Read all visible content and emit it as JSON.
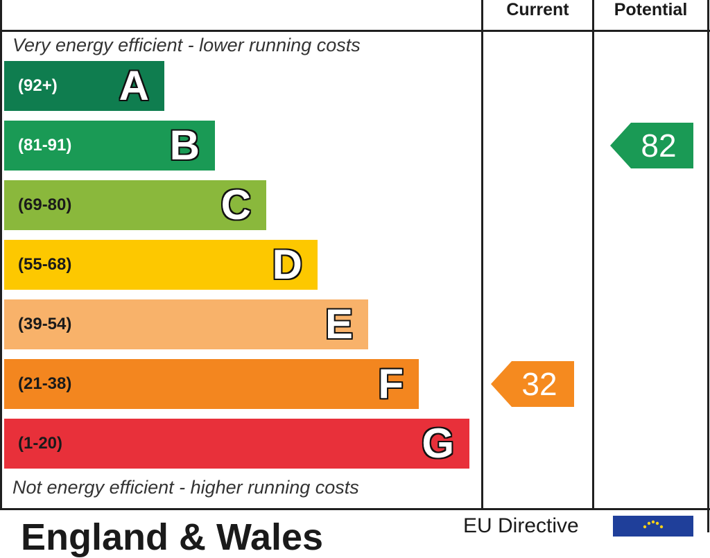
{
  "header": {
    "current_label": "Current",
    "potential_label": "Potential"
  },
  "notes": {
    "top": "Very energy efficient - lower running costs",
    "bottom": "Not energy efficient - higher running costs"
  },
  "chart_data": {
    "type": "bar",
    "bands": [
      {
        "letter": "A",
        "range": "(92+)",
        "color": "#0f7d4f",
        "range_color": "#ffffff"
      },
      {
        "letter": "B",
        "range": "(81-91)",
        "color": "#1a9a55",
        "range_color": "#ffffff"
      },
      {
        "letter": "C",
        "range": "(69-80)",
        "color": "#8ab83c",
        "range_color": "#1a1a1a"
      },
      {
        "letter": "D",
        "range": "(55-68)",
        "color": "#fdc800",
        "range_color": "#1a1a1a"
      },
      {
        "letter": "E",
        "range": "(39-54)",
        "color": "#f8b26a",
        "range_color": "#1a1a1a"
      },
      {
        "letter": "F",
        "range": "(21-38)",
        "color": "#f3861f",
        "range_color": "#1a1a1a"
      },
      {
        "letter": "G",
        "range": "(1-20)",
        "color": "#e8303a",
        "range_color": "#1a1a1a"
      }
    ],
    "current": {
      "value": 32,
      "band": "F",
      "color": "#f58a1f"
    },
    "potential": {
      "value": 82,
      "band": "B",
      "color": "#1a9a55"
    }
  },
  "footer": {
    "region": "England & Wales",
    "eu_directive": "EU Directive"
  }
}
